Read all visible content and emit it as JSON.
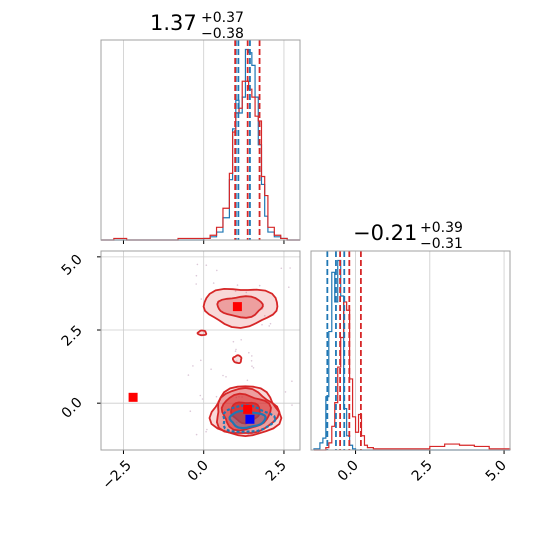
{
  "colors": {
    "series_a": "#1f77b4",
    "series_b": "#d62728",
    "grid": "#cccccc",
    "frame": "#a0a0a0"
  },
  "chart_data": {
    "type": "corner",
    "panels": [
      {
        "id": "hist-p1",
        "type": "histogram",
        "title": {
          "value": "1.37",
          "plus": "+0.37",
          "minus": "−0.38"
        },
        "xlim": [
          -3.2,
          3.0
        ],
        "bin_edges": [
          -3.2,
          -2.8,
          -2.4,
          -2.0,
          -1.6,
          -1.2,
          -0.8,
          -0.4,
          0.0,
          0.2,
          0.4,
          0.6,
          0.8,
          0.9,
          1.0,
          1.1,
          1.2,
          1.3,
          1.4,
          1.5,
          1.6,
          1.7,
          1.8,
          1.9,
          2.0,
          2.2,
          2.4,
          2.6,
          3.0
        ],
        "series": [
          {
            "color": "series_a",
            "counts": [
              0,
              0,
              0,
              0,
              0,
              0,
              0,
              0,
              1,
              2,
              5,
              14,
              38,
              70,
              88,
              80,
              90,
              120,
              118,
              110,
              90,
              60,
              35,
              15,
              5,
              2,
              1,
              0
            ]
          },
          {
            "color": "series_b",
            "counts": [
              0,
              1,
              0,
              0,
              0,
              0,
              1,
              1,
              1,
              3,
              8,
              20,
              42,
              68,
              80,
              83,
              100,
              100,
              95,
              90,
              78,
              75,
              40,
              28,
              8,
              3,
              1,
              0
            ]
          }
        ],
        "vlines": [
          {
            "color": "series_a",
            "x": [
              1.0,
              1.08,
              1.44
            ]
          },
          {
            "color": "series_b",
            "x": [
              0.98,
              1.37,
              1.74
            ]
          }
        ]
      },
      {
        "id": "hist-p2",
        "type": "histogram",
        "title": {
          "value": "−0.21",
          "plus": "+0.39",
          "minus": "−0.31"
        },
        "xlim": [
          -1.5,
          5.2
        ],
        "bin_edges": [
          -1.4,
          -1.2,
          -1.1,
          -1.0,
          -0.9,
          -0.8,
          -0.7,
          -0.6,
          -0.5,
          -0.4,
          -0.3,
          -0.2,
          -0.1,
          0.0,
          0.1,
          0.2,
          0.3,
          0.4,
          0.6,
          1.0,
          1.5,
          2.0,
          2.5,
          3.0,
          3.5,
          4.0,
          4.5,
          5.2
        ],
        "series": [
          {
            "color": "series_a",
            "counts": [
              1,
              6,
              10,
              45,
              100,
              150,
              125,
              160,
              130,
              35,
              12,
              4,
              1,
              0,
              0,
              0,
              0,
              0,
              0,
              0,
              0,
              0,
              0,
              0,
              0,
              0,
              0
            ]
          },
          {
            "color": "series_b",
            "counts": [
              0,
              0,
              0,
              2,
              6,
              20,
              40,
              70,
              95,
              125,
              118,
              60,
              28,
              15,
              30,
              12,
              4,
              2,
              1,
              1,
              1,
              1,
              3,
              5,
              4,
              3,
              1
            ]
          }
        ],
        "vlines": [
          {
            "color": "series_a",
            "x": [
              -0.95,
              -0.66,
              -0.38
            ]
          },
          {
            "color": "series_b",
            "x": [
              -0.52,
              -0.21,
              0.18
            ]
          }
        ]
      },
      {
        "id": "scatter-2d",
        "type": "contour",
        "xlim": [
          -3.2,
          3.0
        ],
        "ylim": [
          -1.6,
          5.2
        ],
        "series_b_regions": [
          {
            "center": [
              1.3,
              -0.3
            ],
            "rx": [
              1.05,
              0.95,
              0.75,
              0.45
            ],
            "ry": [
              0.85,
              0.77,
              0.6,
              0.35
            ]
          },
          {
            "center": [
              1.15,
              3.3
            ],
            "rx": [
              1.15,
              0.7
            ],
            "ry": [
              0.65,
              0.35
            ]
          }
        ],
        "series_b_islands": [
          {
            "center": [
              1.05,
              1.5
            ],
            "rx": 0.13,
            "ry": 0.13
          },
          {
            "center": [
              -0.05,
              2.4
            ],
            "rx": 0.13,
            "ry": 0.08
          }
        ],
        "series_a_regions": [
          {
            "center": [
              1.35,
              -0.55
            ],
            "rx": [
              0.8,
              0.55
            ],
            "ry": [
              0.45,
              0.28
            ]
          }
        ],
        "markers": [
          {
            "color": "series_b",
            "x": 1.05,
            "y": 3.3
          },
          {
            "color": "series_b",
            "x": -2.2,
            "y": 0.2
          },
          {
            "color": "series_b",
            "x": 1.37,
            "y": -0.21
          },
          {
            "color": "series_a",
            "x": 1.44,
            "y": -0.55
          }
        ],
        "xticks": [
          -2.5,
          0.0,
          2.5
        ],
        "yticks": [
          0.0,
          2.5,
          5.0
        ]
      }
    ],
    "tick_labels": {
      "x_bottom_left": [
        "−2.5",
        "0.0",
        "2.5"
      ],
      "x_bottom_right": [
        "0.0",
        "2.5",
        "5.0"
      ],
      "y_left": [
        "0.0",
        "2.5",
        "5.0"
      ]
    },
    "grid": true
  }
}
